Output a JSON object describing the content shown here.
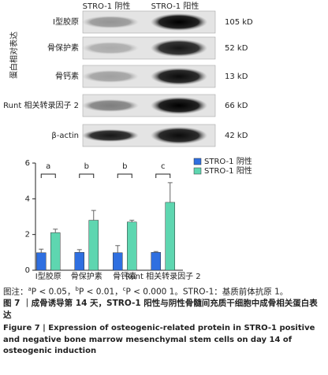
{
  "blot": {
    "columns": [
      "STRO-1 阴性",
      "STRO-1 阳性"
    ],
    "rows": [
      {
        "label": "Ⅰ型胶原",
        "size": "105 kD"
      },
      {
        "label": "骨保护素",
        "size": "52 kD"
      },
      {
        "label": "骨钙素",
        "size": "13 kD"
      },
      {
        "label": "Runt 相关转录因子 2",
        "size": "66 kD"
      },
      {
        "label": "β-actin",
        "size": "42 kD"
      }
    ]
  },
  "chart_data": {
    "type": "bar",
    "y_label": "蛋白相对表达",
    "categories": [
      "Ⅰ型胶原",
      "骨保护素",
      "骨钙素",
      "Runt 相关转录因子 2"
    ],
    "series": [
      {
        "name": "STRO-1 阴性",
        "color": "#2f6fe0",
        "values": [
          0.98,
          1.0,
          0.98,
          1.0
        ],
        "errors": [
          0.2,
          0.15,
          0.4,
          0.05
        ]
      },
      {
        "name": "STRO-1 阳性",
        "color": "#5ed6b0",
        "values": [
          2.1,
          2.8,
          2.7,
          3.8
        ],
        "errors": [
          0.2,
          0.55,
          0.1,
          1.1
        ]
      }
    ],
    "annotations": [
      "a",
      "b",
      "b",
      "c"
    ],
    "ylim": [
      0,
      6
    ],
    "yticks": [
      0,
      2,
      4,
      6
    ],
    "legend": "upper right"
  },
  "caption": {
    "note": [
      "图注：",
      "a",
      "P < 0.05，",
      "b",
      "P < 0.01，",
      "c",
      "P < 0.000 1。STRO-1：基质前体抗原 1。"
    ],
    "title_cn": "图 7 ｜成骨诱导第 14 天，STRO-1 阳性与阴性骨髓间充质干细胞中成骨相关蛋白表达",
    "title_en": "Figure 7 | Expression of osteogenic-related protein in STRO-1 positive and negative bone marrow mesenchymal stem cells on day 14 of osteogenic induction"
  }
}
